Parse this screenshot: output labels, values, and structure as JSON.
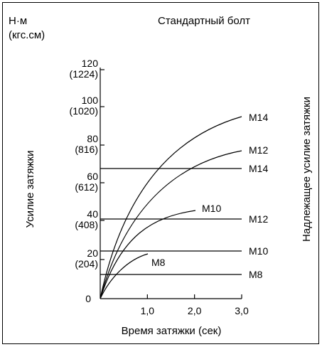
{
  "chart_data": {
    "type": "line",
    "title": "Стандартный болт",
    "unit_label": [
      "Н·м",
      "(кгс.см)"
    ],
    "xlabel": "Время затяжки (сек)",
    "ylabel": "Усилие затяжки",
    "right_label": "Надлежащее усилие затяжки",
    "x_ticks": [
      "1,0",
      "2,0",
      "3,0"
    ],
    "x_tick_values": [
      1,
      2,
      3
    ],
    "y_ticks": [
      {
        "value": 120,
        "label": "120",
        "sub": "(1224)"
      },
      {
        "value": 100,
        "label": "100",
        "sub": "(1020)"
      },
      {
        "value": 80,
        "label": "80",
        "sub": "(816)"
      },
      {
        "value": 60,
        "label": "60",
        "sub": "(612)"
      },
      {
        "value": 40,
        "label": "40",
        "sub": "(408)"
      },
      {
        "value": 20,
        "label": "20",
        "sub": "(204)"
      },
      {
        "value": 0,
        "label": "0",
        "sub": ""
      }
    ],
    "origin_label": "0",
    "xlim": [
      0,
      3
    ],
    "ylim": [
      0,
      130
    ],
    "series": [
      {
        "name": "M14",
        "x": [
          0,
          0.25,
          0.5,
          0.75,
          1.0,
          1.5,
          2.0,
          2.5,
          3.0
        ],
        "y": [
          0,
          25,
          42,
          54,
          63,
          76,
          85,
          91,
          95
        ]
      },
      {
        "name": "M12",
        "x": [
          0,
          0.25,
          0.5,
          0.75,
          1.0,
          1.5,
          2.0,
          2.5,
          3.0
        ],
        "y": [
          0,
          22,
          36,
          46,
          53,
          63,
          69,
          74,
          77
        ]
      },
      {
        "name": "M10",
        "x": [
          0,
          0.25,
          0.5,
          0.75,
          1.0,
          1.5,
          2.0
        ],
        "y": [
          0,
          16,
          25,
          31,
          35,
          41,
          45
        ]
      },
      {
        "name": "M8",
        "x": [
          0,
          0.125,
          0.25,
          0.5,
          0.75,
          1.0
        ],
        "y": [
          0,
          7,
          11,
          16,
          19,
          21
        ]
      }
    ],
    "reference_lines": [
      {
        "name": "M14",
        "y": 67
      },
      {
        "name": "M12",
        "y": 42
      },
      {
        "name": "M10",
        "y": 21
      },
      {
        "name": "M8",
        "y": 11
      }
    ]
  }
}
